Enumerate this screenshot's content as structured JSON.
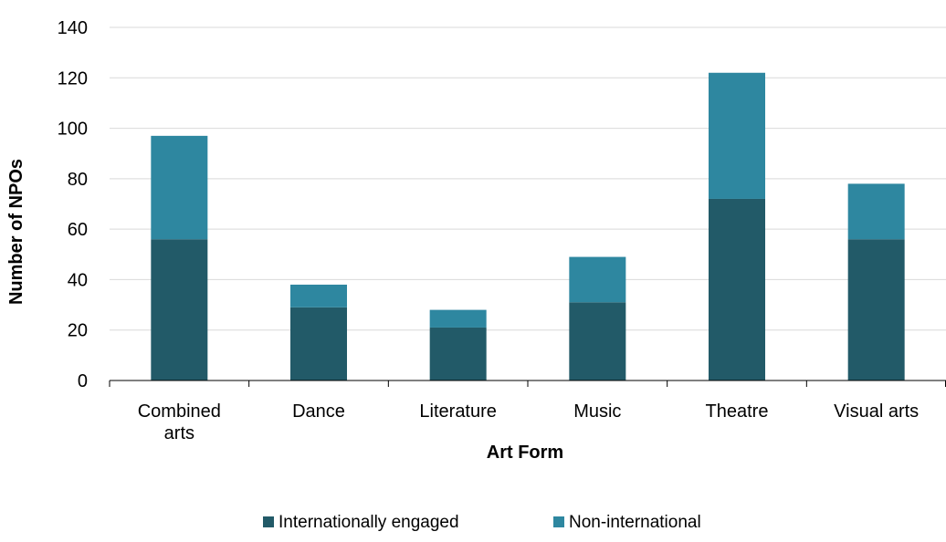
{
  "chart_data": {
    "type": "bar",
    "stacked": true,
    "categories": [
      [
        "Combined",
        "arts"
      ],
      [
        "Dance"
      ],
      [
        "Literature"
      ],
      [
        "Music"
      ],
      [
        "Theatre"
      ],
      [
        "Visual arts"
      ]
    ],
    "series": [
      {
        "name": "Internationally engaged",
        "color": "#225a68",
        "values": [
          56,
          29,
          21,
          31,
          72,
          56
        ]
      },
      {
        "name": "Non-international",
        "color": "#2e87a0",
        "values": [
          41,
          9,
          7,
          18,
          50,
          22
        ]
      }
    ],
    "xlabel": "Art Form",
    "ylabel": "Number of NPOs",
    "ylim": [
      0,
      140
    ],
    "yticks": [
      0,
      20,
      40,
      60,
      80,
      100,
      120,
      140
    ],
    "grid": true,
    "legend_position": "bottom-center",
    "colors": {
      "grid": "#d9d9d9",
      "axis": "#000000"
    }
  }
}
